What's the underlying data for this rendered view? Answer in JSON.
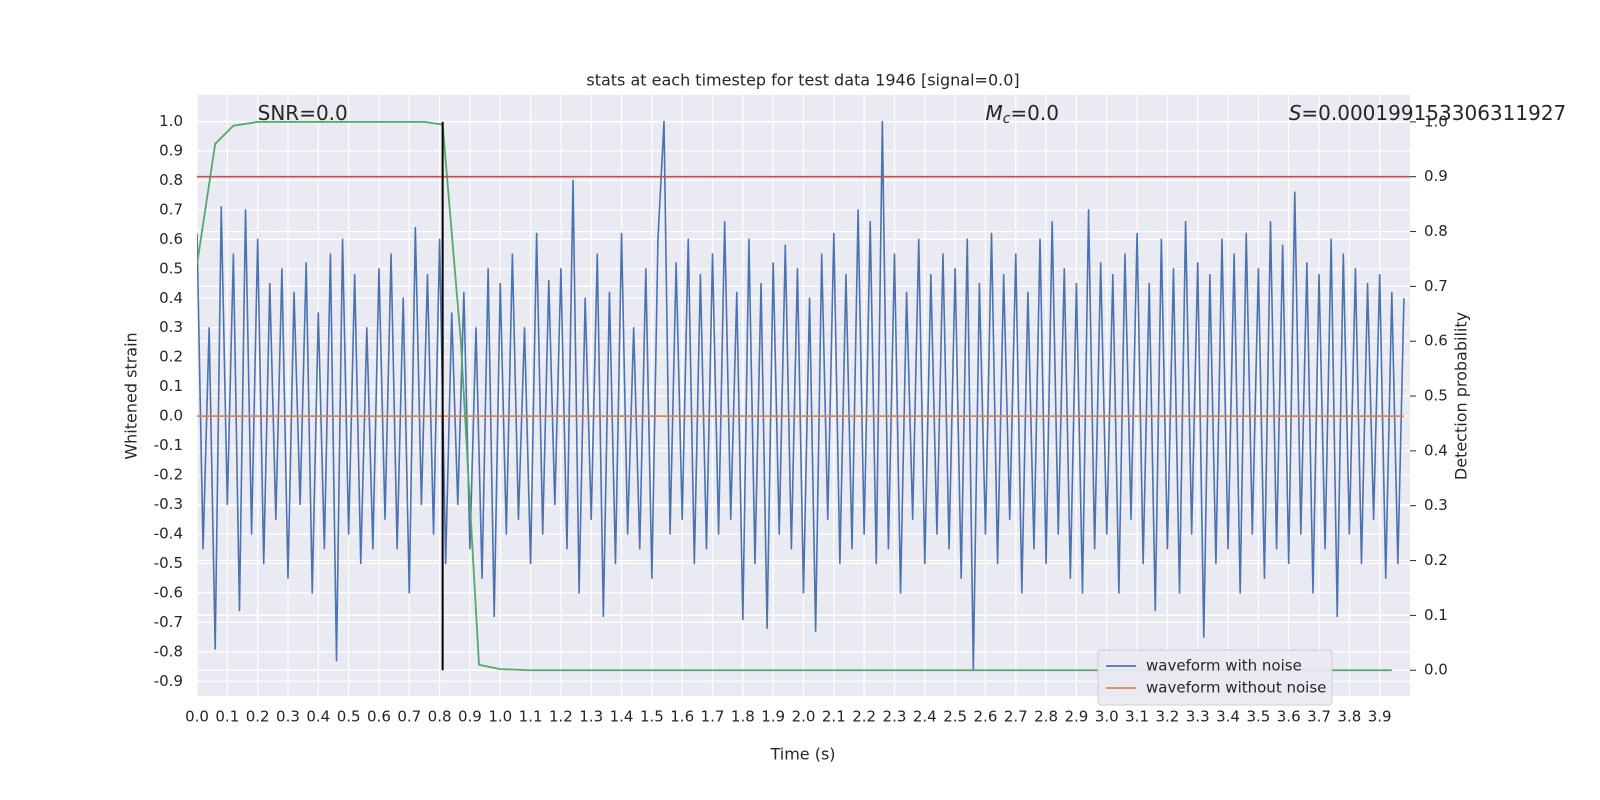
{
  "chart_data": {
    "type": "line",
    "title": "stats at each timestep for test data 1946 [signal=0.0]",
    "x_label": "Time (s)",
    "y_label": "Whitened strain",
    "y2_label": "Detection probability",
    "xlim": [
      0,
      4.0
    ],
    "ylim": [
      -0.95,
      1.09
    ],
    "y2lim": [
      -0.047,
      1.049
    ],
    "xticks": [
      {
        "value": 0,
        "label": "0.0"
      },
      0.1,
      0.2,
      0.3,
      0.4,
      0.5,
      0.6,
      0.7,
      0.8,
      0.9,
      {
        "value": 1,
        "label": "1.0"
      },
      1.1,
      1.2,
      1.3,
      1.4,
      1.5,
      1.6,
      1.7,
      1.8,
      1.9,
      {
        "value": 2,
        "label": "2.0"
      },
      2.1,
      2.2,
      2.3,
      2.4,
      2.5,
      2.6,
      2.7,
      2.8,
      2.9,
      {
        "value": 3,
        "label": "3.0"
      },
      3.1,
      3.2,
      3.3,
      3.4,
      3.5,
      3.6,
      3.7,
      3.8,
      3.9
    ],
    "yticks": [
      -0.9,
      -0.8,
      -0.7,
      -0.6,
      -0.5,
      -0.4,
      -0.3,
      -0.2,
      -0.1,
      {
        "value": 0,
        "label": "0.0"
      },
      0.1,
      0.2,
      0.3,
      0.4,
      0.5,
      0.6,
      0.7,
      0.8,
      0.9,
      {
        "value": 1,
        "label": "1.0"
      }
    ],
    "y2ticks": [
      {
        "value": 0,
        "label": "0.0"
      },
      0.1,
      0.2,
      0.3,
      0.4,
      0.5,
      0.6,
      0.7,
      0.8,
      0.9,
      {
        "value": 1,
        "label": "1.0"
      }
    ],
    "grid": true,
    "legend": "lower right",
    "annotations": [
      {
        "x": 0.2,
        "text": "SNR=0.0"
      },
      {
        "x": 2.6,
        "italic": "M",
        "sub": "c",
        "text": "=0.0"
      },
      {
        "x": 3.6,
        "italic": "S",
        "text": "=0.000199153306311927"
      }
    ],
    "threshold": {
      "value": 0.9,
      "axis": "y2",
      "color": "#c44e52"
    },
    "vline": {
      "x": 0.81,
      "from": 0,
      "to": 1,
      "axis": "y2",
      "color": "#000000"
    },
    "series": [
      {
        "name": "waveform with noise",
        "color": "#4c72b0",
        "x": [
          0,
          0.02,
          0.04,
          0.06,
          0.08,
          0.1,
          0.12,
          0.14,
          0.16,
          0.18,
          0.2,
          0.22,
          0.24,
          0.26,
          0.28,
          0.3,
          0.32,
          0.34,
          0.36,
          0.38,
          0.4,
          0.42,
          0.44,
          0.46,
          0.48,
          0.5,
          0.52,
          0.54,
          0.56,
          0.58,
          0.6,
          0.62,
          0.64,
          0.66,
          0.68,
          0.7,
          0.72,
          0.74,
          0.76,
          0.78,
          0.8,
          0.82,
          0.84,
          0.86,
          0.88,
          0.9,
          0.92,
          0.94,
          0.96,
          0.98,
          1,
          1.02,
          1.04,
          1.06,
          1.08,
          1.1,
          1.12,
          1.14,
          1.16,
          1.18,
          1.2,
          1.22,
          1.24,
          1.26,
          1.28,
          1.3,
          1.32,
          1.34,
          1.36,
          1.38,
          1.4,
          1.42,
          1.44,
          1.46,
          1.48,
          1.5,
          1.52,
          1.54,
          1.56,
          1.58,
          1.6,
          1.62,
          1.64,
          1.66,
          1.68,
          1.7,
          1.72,
          1.74,
          1.76,
          1.78,
          1.8,
          1.82,
          1.84,
          1.86,
          1.88,
          1.9,
          1.92,
          1.94,
          1.96,
          1.98,
          2,
          2.02,
          2.04,
          2.06,
          2.08,
          2.1,
          2.12,
          2.14,
          2.16,
          2.18,
          2.2,
          2.22,
          2.24,
          2.26,
          2.28,
          2.3,
          2.32,
          2.34,
          2.36,
          2.38,
          2.4,
          2.42,
          2.44,
          2.46,
          2.48,
          2.5,
          2.52,
          2.54,
          2.56,
          2.58,
          2.6,
          2.62,
          2.64,
          2.66,
          2.68,
          2.7,
          2.72,
          2.74,
          2.76,
          2.78,
          2.8,
          2.82,
          2.84,
          2.86,
          2.88,
          2.9,
          2.92,
          2.94,
          2.96,
          2.98,
          3,
          3.02,
          3.04,
          3.06,
          3.08,
          3.1,
          3.12,
          3.14,
          3.16,
          3.18,
          3.2,
          3.22,
          3.24,
          3.26,
          3.28,
          3.3,
          3.32,
          3.34,
          3.36,
          3.38,
          3.4,
          3.42,
          3.44,
          3.46,
          3.48,
          3.5,
          3.52,
          3.54,
          3.56,
          3.58,
          3.6,
          3.62,
          3.64,
          3.66,
          3.68,
          3.7,
          3.72,
          3.74,
          3.76,
          3.78,
          3.8,
          3.82,
          3.84,
          3.86,
          3.88,
          3.9,
          3.92,
          3.94,
          3.96,
          3.98
        ],
        "values": [
          0.62,
          -0.45,
          0.3,
          -0.79,
          0.71,
          -0.3,
          0.55,
          -0.66,
          0.7,
          -0.4,
          0.6,
          -0.5,
          0.45,
          -0.35,
          0.5,
          -0.55,
          0.42,
          -0.3,
          0.52,
          -0.6,
          0.35,
          -0.45,
          0.55,
          -0.83,
          0.6,
          -0.4,
          0.48,
          -0.5,
          0.3,
          -0.45,
          0.5,
          -0.35,
          0.55,
          -0.45,
          0.4,
          -0.6,
          0.64,
          -0.3,
          0.48,
          -0.4,
          0.6,
          -0.5,
          0.35,
          -0.3,
          0.42,
          -0.45,
          0.3,
          -0.55,
          0.5,
          -0.68,
          0.45,
          -0.4,
          0.55,
          -0.35,
          0.3,
          -0.5,
          0.62,
          -0.4,
          0.46,
          -0.3,
          0.5,
          -0.45,
          0.8,
          -0.6,
          0.4,
          -0.35,
          0.55,
          -0.68,
          0.42,
          -0.5,
          0.62,
          -0.4,
          0.3,
          -0.45,
          0.5,
          -0.55,
          0.6,
          1.0,
          -0.4,
          0.52,
          -0.35,
          0.6,
          -0.5,
          0.48,
          -0.45,
          0.55,
          -0.4,
          0.66,
          -0.35,
          0.42,
          -0.69,
          0.6,
          -0.5,
          0.45,
          -0.72,
          0.52,
          -0.4,
          0.58,
          -0.45,
          0.5,
          -0.6,
          0.4,
          -0.73,
          0.55,
          -0.35,
          0.62,
          -0.5,
          0.48,
          -0.45,
          0.7,
          -0.4,
          0.66,
          -0.5,
          1.0,
          -0.45,
          0.55,
          -0.6,
          0.42,
          -0.35,
          0.6,
          -0.5,
          0.48,
          -0.4,
          0.55,
          -0.45,
          0.5,
          -0.55,
          0.6,
          -0.86,
          0.45,
          -0.4,
          0.62,
          -0.5,
          0.48,
          -0.35,
          0.55,
          -0.6,
          0.42,
          -0.45,
          0.6,
          -0.5,
          0.66,
          -0.4,
          0.5,
          -0.55,
          0.45,
          -0.6,
          0.7,
          -0.45,
          0.52,
          -0.4,
          0.48,
          -0.6,
          0.55,
          -0.35,
          0.62,
          -0.5,
          0.45,
          -0.66,
          0.6,
          -0.45,
          0.5,
          -0.6,
          0.66,
          -0.4,
          0.52,
          -0.75,
          0.48,
          -0.5,
          0.6,
          -0.45,
          0.55,
          -0.6,
          0.62,
          -0.4,
          0.5,
          -0.55,
          0.66,
          -0.45,
          0.58,
          -0.5,
          0.76,
          -0.4,
          0.52,
          -0.6,
          0.48,
          -0.45,
          0.6,
          -0.68,
          0.55,
          -0.4,
          0.5,
          -0.5,
          0.45,
          -0.35,
          0.48,
          -0.55,
          0.42,
          -0.5,
          0.4
        ]
      },
      {
        "name": "waveform without noise",
        "color": "#dd8452",
        "x": [
          0,
          3.98
        ],
        "values": [
          0,
          0
        ]
      },
      {
        "color": "#55a868",
        "axis": "y2",
        "x": [
          0,
          0.06,
          0.12,
          0.2,
          0.75,
          0.81,
          0.87,
          0.93,
          1.0,
          1.1,
          3.94
        ],
        "values": [
          0.74,
          0.96,
          0.993,
          1.0,
          1.0,
          0.995,
          0.6,
          0.01,
          0.002,
          0.0,
          0.0
        ]
      }
    ]
  }
}
